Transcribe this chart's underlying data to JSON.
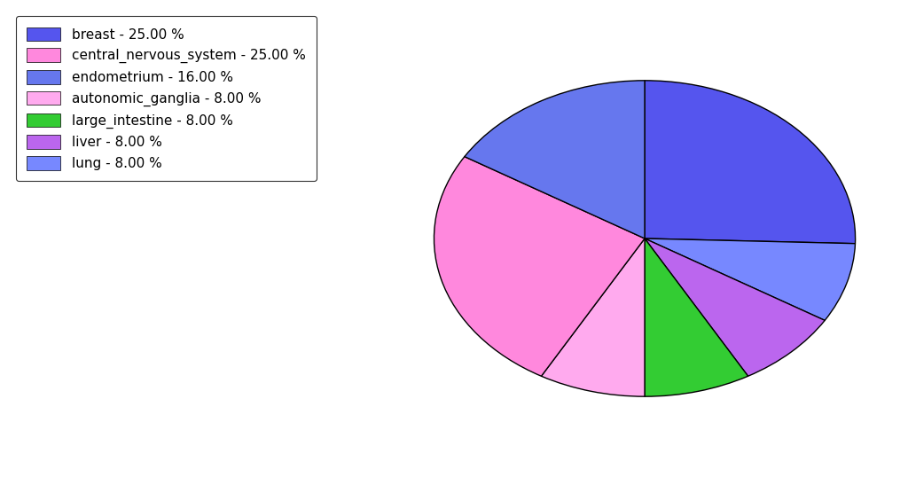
{
  "labels": [
    "breast",
    "lung",
    "liver",
    "large_intestine",
    "autonomic_ganglia",
    "central_nervous_system",
    "endometrium"
  ],
  "percentages": [
    25.0,
    8.0,
    8.0,
    8.0,
    8.0,
    25.0,
    16.0
  ],
  "colors": [
    "#6666ff",
    "#6699ff",
    "#cc66ff",
    "#33cc33",
    "#ff99ee",
    "#ff88cc",
    "#6666ff"
  ],
  "pie_colors": [
    "#5555ee",
    "#7788ff",
    "#bb66ee",
    "#33cc33",
    "#ffaaee",
    "#ff88dd",
    "#6677ee"
  ],
  "legend_labels": [
    "breast - 25.00 %",
    "central_nervous_system - 25.00 %",
    "endometrium - 16.00 %",
    "autonomic_ganglia - 8.00 %",
    "large_intestine - 8.00 %",
    "liver - 8.00 %",
    "lung - 8.00 %"
  ],
  "legend_colors": [
    "#5555ee",
    "#ff88dd",
    "#6677ee",
    "#ffaaee",
    "#33cc33",
    "#bb66ee",
    "#7788ff"
  ],
  "start_angle": 90,
  "figsize": [
    10.24,
    5.38
  ],
  "dpi": 100
}
